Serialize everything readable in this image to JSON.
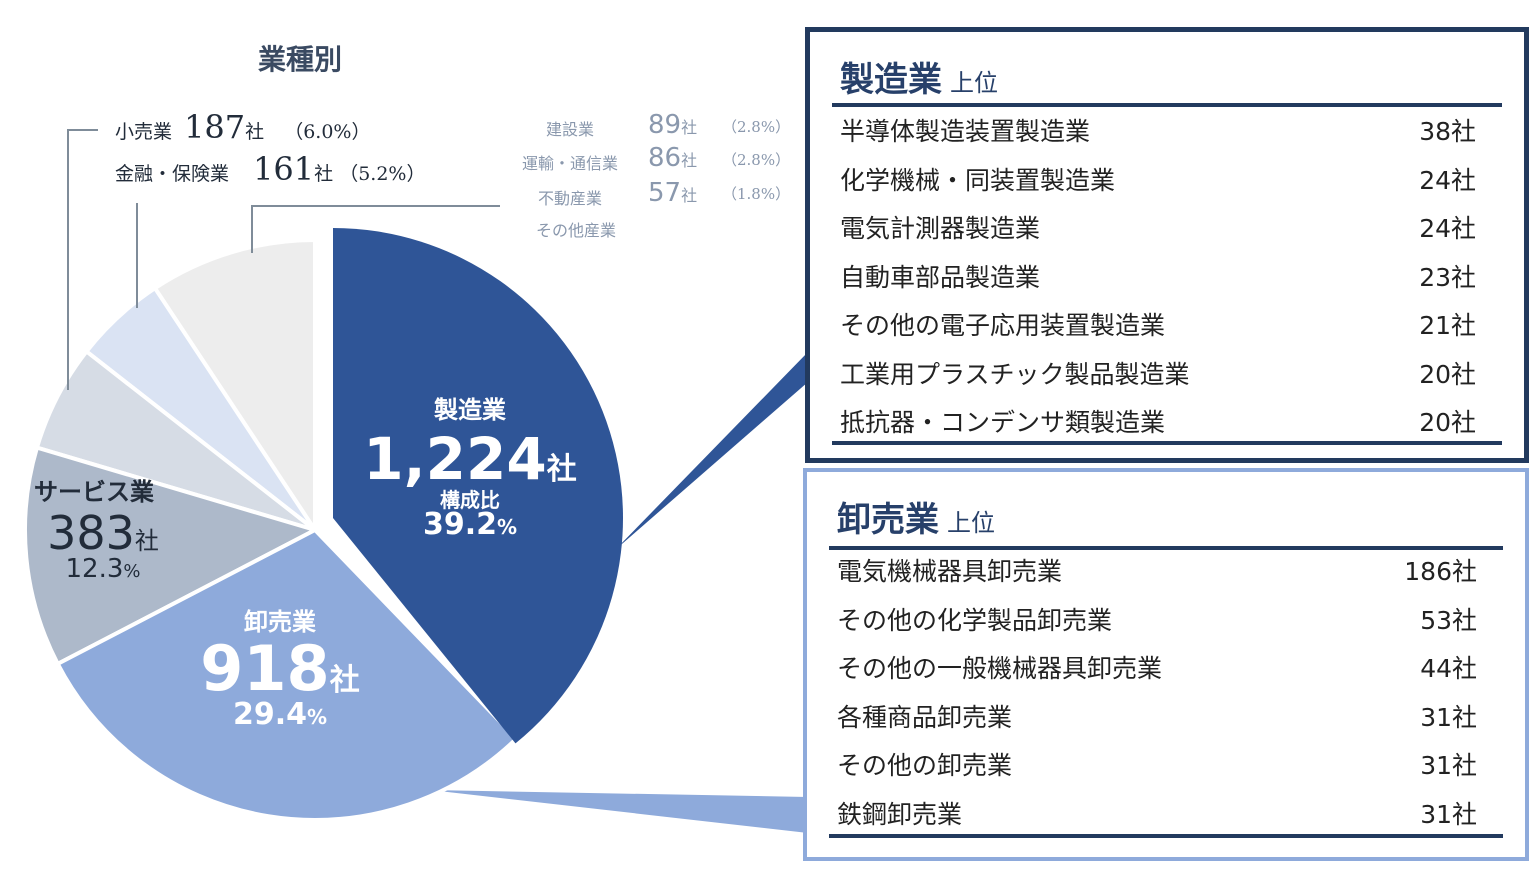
{
  "title": "業種別",
  "unit": "社",
  "pie_labels": {
    "manufacturing": {
      "name": "製造業",
      "count": "1,224",
      "ratio_label": "構成比",
      "pct": "39.2",
      "pct_sign": "%"
    },
    "wholesale": {
      "name": "卸売業",
      "count": "918",
      "pct": "29.4",
      "pct_sign": "%"
    },
    "services": {
      "name": "サービス業",
      "count": "383",
      "pct": "12.3",
      "pct_sign": "%"
    }
  },
  "outside_labels": {
    "retail": {
      "name": "小売業",
      "count": "187",
      "pct": "（6.0%）"
    },
    "finance": {
      "name": "金融・保険業",
      "count": "161",
      "pct": "（5.2%）"
    },
    "construction": {
      "name": "建設業",
      "count": "89",
      "pct": "（2.8%）"
    },
    "transport": {
      "name": "運輸・通信業",
      "count": "86",
      "pct": "（2.8%）"
    },
    "realestate": {
      "name": "不動産業",
      "count": "57",
      "pct": "（1.8%）"
    },
    "other": {
      "name": "その他産業"
    }
  },
  "manufacturing_panel": {
    "title": "製造業",
    "subtitle": "上位",
    "rows": [
      {
        "name": "半導体製造装置製造業",
        "count": "38社"
      },
      {
        "name": "化学機械・同装置製造業",
        "count": "24社"
      },
      {
        "name": "電気計測器製造業",
        "count": "24社"
      },
      {
        "name": "自動車部品製造業",
        "count": "23社"
      },
      {
        "name": "その他の電子応用装置製造業",
        "count": "21社"
      },
      {
        "name": "工業用プラスチック製品製造業",
        "count": "20社"
      },
      {
        "name": "抵抗器・コンデンサ類製造業",
        "count": "20社"
      }
    ]
  },
  "wholesale_panel": {
    "title": "卸売業",
    "subtitle": "上位",
    "rows": [
      {
        "name": "電気機械器具卸売業",
        "count": "186社"
      },
      {
        "name": "その他の化学製品卸売業",
        "count": "53社"
      },
      {
        "name": "その他の一般機械器具卸売業",
        "count": "44社"
      },
      {
        "name": "各種商品卸売業",
        "count": "31社"
      },
      {
        "name": "その他の卸売業",
        "count": "31社"
      },
      {
        "name": "鉄鋼卸売業",
        "count": "31社"
      }
    ]
  },
  "colors": {
    "manufacturing": "#2f5597",
    "wholesale": "#8eaadb",
    "services": "#adb9ca",
    "retail": "#d6dce5",
    "finance": "#dae3f3",
    "other": "#ededed",
    "panel_dark": "#223a5e",
    "panel_light": "#8eaadb"
  },
  "chart_data": {
    "type": "pie",
    "title": "業種別",
    "categories": [
      "製造業",
      "卸売業",
      "サービス業",
      "小売業",
      "金融・保険業",
      "建設業",
      "運輸・通信業",
      "不動産業",
      "その他産業"
    ],
    "values": [
      1224,
      918,
      383,
      187,
      161,
      89,
      86,
      57,
      null
    ],
    "percentages": [
      39.2,
      29.4,
      12.3,
      6.0,
      5.2,
      2.8,
      2.8,
      1.8,
      null
    ],
    "unit": "社",
    "exploded": [
      "製造業"
    ],
    "breakdowns": [
      {
        "category": "製造業",
        "title": "製造業 上位",
        "items": [
          "半導体製造装置製造業",
          "化学機械・同装置製造業",
          "電気計測器製造業",
          "自動車部品製造業",
          "その他の電子応用装置製造業",
          "工業用プラスチック製品製造業",
          "抵抗器・コンデンサ類製造業"
        ],
        "values": [
          38,
          24,
          24,
          23,
          21,
          20,
          20
        ]
      },
      {
        "category": "卸売業",
        "title": "卸売業 上位",
        "items": [
          "電気機械器具卸売業",
          "その他の化学製品卸売業",
          "その他の一般機械器具卸売業",
          "各種商品卸売業",
          "その他の卸売業",
          "鉄鋼卸売業"
        ],
        "values": [
          186,
          53,
          44,
          31,
          31,
          31
        ]
      }
    ]
  }
}
